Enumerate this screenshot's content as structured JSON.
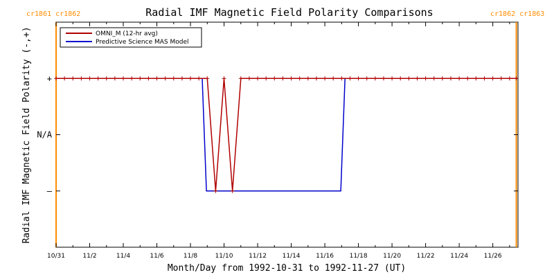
{
  "chart_data": {
    "type": "line",
    "title": "Radial IMF Magnetic Field Polarity Comparisons",
    "xlabel": "Month/Day from 1992-10-31 to 1992-11-27 (UT)",
    "ylabel": "Radial IMF Magnetic Field Polarity (-,+)",
    "x_start_date": "1992-10-31",
    "xlim_days": [
      0,
      27.5
    ],
    "ylim": [
      -2,
      2
    ],
    "x_tick_labels": [
      "10/31",
      "11/2",
      "11/4",
      "11/6",
      "11/8",
      "11/10",
      "11/12",
      "11/14",
      "11/16",
      "11/18",
      "11/20",
      "11/22",
      "11/24",
      "11/26"
    ],
    "x_tick_days": [
      0,
      2,
      4,
      6,
      8,
      10,
      12,
      14,
      16,
      18,
      20,
      22,
      24,
      26
    ],
    "y_ticks": [
      {
        "value": 1,
        "label": "+"
      },
      {
        "value": 0,
        "label": "N/A"
      },
      {
        "value": -1,
        "label": "–"
      }
    ],
    "cr_labels_left": "cr1861 cr1862",
    "cr_labels_right": "cr1862 cr1863",
    "cr_line_days": [
      0,
      27.4
    ],
    "legend_position": "top-left",
    "series": [
      {
        "name": "OMNI_M (12-hr avg)",
        "color": "#b00000",
        "x": [
          0,
          0.5,
          1,
          1.5,
          2,
          2.5,
          3,
          3.5,
          4,
          4.5,
          5,
          5.5,
          6,
          6.5,
          7,
          7.5,
          8,
          8.5,
          9,
          9.5,
          10,
          10.5,
          11,
          11.5,
          12,
          12.5,
          13,
          13.5,
          14,
          14.5,
          15,
          15.5,
          16,
          16.5,
          17,
          17.5,
          18,
          18.5,
          19,
          19.5,
          20,
          20.5,
          21,
          21.5,
          22,
          22.5,
          23,
          23.5,
          24,
          24.5,
          25,
          25.5,
          26,
          26.5,
          27,
          27.4
        ],
        "y": [
          1,
          1,
          1,
          1,
          1,
          1,
          1,
          1,
          1,
          1,
          1,
          1,
          1,
          1,
          1,
          1,
          1,
          1,
          1,
          -1,
          1,
          -1,
          1,
          1,
          1,
          1,
          1,
          1,
          1,
          1,
          1,
          1,
          1,
          1,
          1,
          1,
          1,
          1,
          1,
          1,
          1,
          1,
          1,
          1,
          1,
          1,
          1,
          1,
          1,
          1,
          1,
          1,
          1,
          1,
          1,
          1
        ],
        "markers": true
      },
      {
        "name": "Predictive Science MAS Model",
        "color": "#0000cc",
        "x": [
          0,
          8.7,
          8.95,
          16.95,
          17.2,
          27.4
        ],
        "y": [
          1,
          1,
          -1,
          -1,
          1,
          1
        ],
        "markers": false
      }
    ]
  }
}
